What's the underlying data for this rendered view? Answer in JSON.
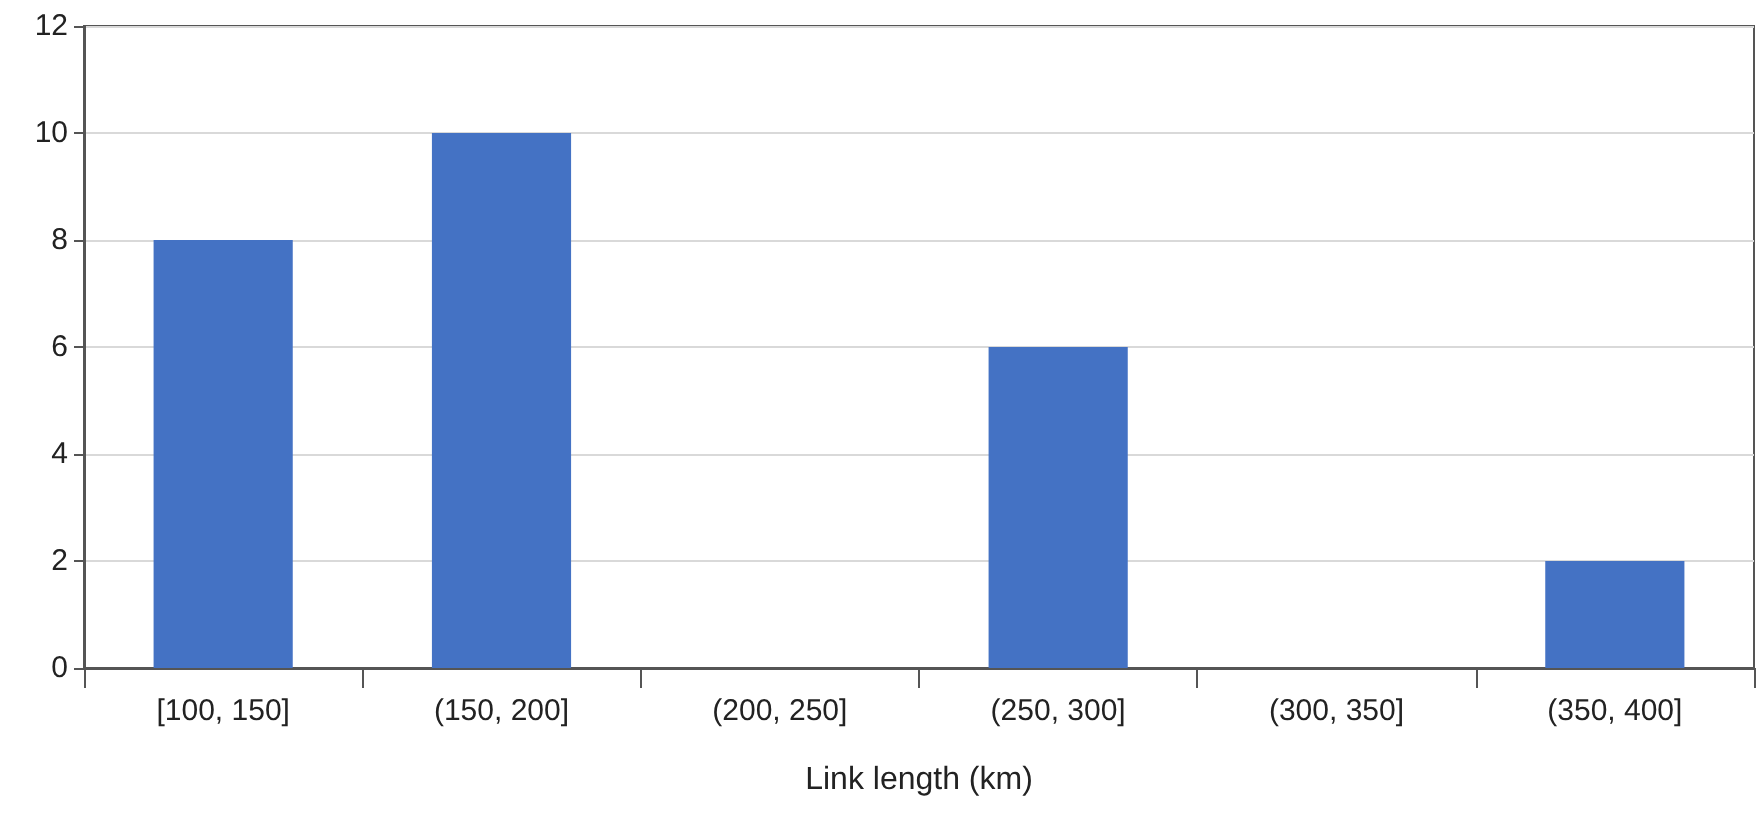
{
  "chart_data": {
    "type": "bar",
    "xlabel": "Link length (km)",
    "categories": [
      "[100, 150]",
      "(150, 200]",
      "(200, 250]",
      "(250, 300]",
      "(300, 350]",
      "(350, 400]"
    ],
    "values": [
      8,
      10,
      0,
      6,
      0,
      2
    ],
    "color": "#4472c4",
    "ylim": [
      0,
      12
    ],
    "yticks": [
      0,
      2,
      4,
      6,
      8,
      10,
      12
    ],
    "grid": "y"
  }
}
